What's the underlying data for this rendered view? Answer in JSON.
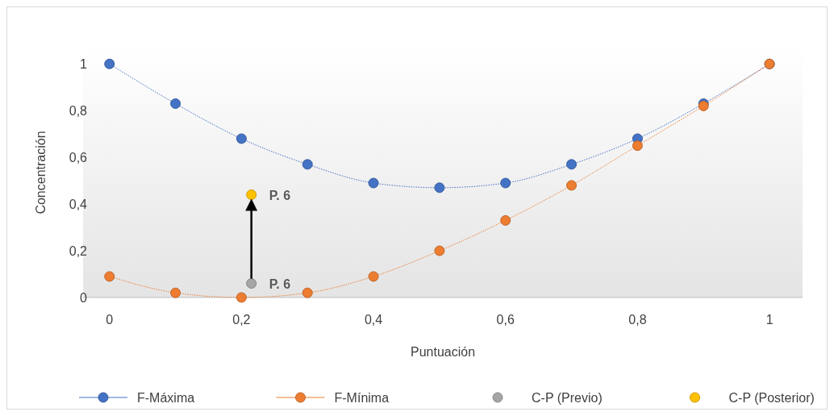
{
  "chart_data": {
    "type": "line",
    "xlabel": "Puntuación",
    "ylabel": "Concentración",
    "x": [
      0,
      0.1,
      0.2,
      0.3,
      0.4,
      0.5,
      0.6,
      0.7,
      0.8,
      0.9,
      1
    ],
    "series": [
      {
        "name": "F-Máxima",
        "color": "#4472c4",
        "values": [
          1,
          0.83,
          0.68,
          0.57,
          0.49,
          0.47,
          0.49,
          0.57,
          0.68,
          0.83,
          1
        ]
      },
      {
        "name": "F-Mínima",
        "color": "#ed7d31",
        "values": [
          0.09,
          0.02,
          0,
          0.02,
          0.09,
          0.2,
          0.33,
          0.48,
          0.65,
          0.82,
          1
        ]
      },
      {
        "name": "C-P (Previo)",
        "type": "scatter",
        "color": "#a5a5a5",
        "x": [
          0.215
        ],
        "values": [
          0.06
        ]
      },
      {
        "name": "C-P (Posterior)",
        "type": "scatter",
        "color": "#ffc000",
        "x": [
          0.215
        ],
        "values": [
          0.44
        ]
      }
    ],
    "xlim": [
      -0.04,
      1.05
    ],
    "ylim": [
      0,
      1.07
    ],
    "xticks": [
      0,
      {
        "value": 0.2,
        "label": "0,2"
      },
      {
        "value": 0.4,
        "label": "0,4"
      },
      {
        "value": 0.6,
        "label": "0,6"
      },
      {
        "value": 0.8,
        "label": "0,8"
      },
      1
    ],
    "yticks": [
      0,
      {
        "value": 0.2,
        "label": "0,2"
      },
      {
        "value": 0.4,
        "label": "0,4"
      },
      {
        "value": 0.6,
        "label": "0,6"
      },
      {
        "value": 0.8,
        "label": "0,8"
      },
      1
    ],
    "annotations": [
      {
        "text": "P. 6",
        "x": 0.215,
        "y": 0.44
      },
      {
        "text": "P. 6",
        "x": 0.215,
        "y": 0.06
      }
    ],
    "marker": "circle",
    "line_style": "dotted",
    "legend": "bottom",
    "grid": false
  }
}
